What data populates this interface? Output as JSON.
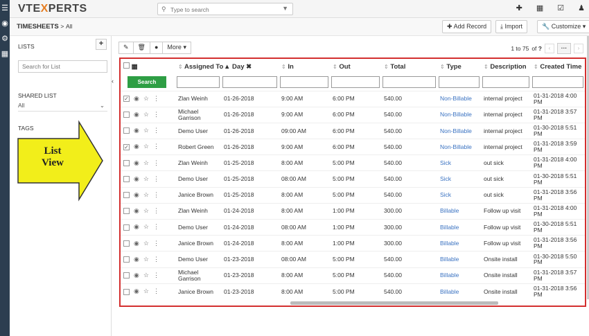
{
  "app": {
    "logo_prefix": "VTE",
    "logo_x": "X",
    "logo_suffix": "PERTS"
  },
  "search": {
    "placeholder": "Type to search"
  },
  "breadcrumb": {
    "module": "TIMESHEETS",
    "separator": ">",
    "current": "All"
  },
  "header_buttons": {
    "add_record": "Add Record",
    "import": "Import",
    "customize": "Customize"
  },
  "sidebar": {
    "lists_title": "LISTS",
    "add_label": "+",
    "search_placeholder": "Search for List",
    "shared_title": "SHARED LIST",
    "shared_value": "All",
    "tags_title": "TAGS"
  },
  "callout": {
    "line1": "List",
    "line2": "View",
    "color": "#f2ee1a"
  },
  "toolbar": {
    "more_label": "More"
  },
  "pager": {
    "range": "1 to 75",
    "of": "of",
    "total": "?",
    "dots": "···"
  },
  "table": {
    "columns": [
      "Assigned To",
      "Day",
      "In",
      "Out",
      "Total",
      "Type",
      "Description",
      "Created Time"
    ],
    "search_button": "Search",
    "rows": [
      {
        "checked": true,
        "assigned": "Zlan Weinh",
        "day": "01-26-2018",
        "in": "9:00 AM",
        "out": "6:00 PM",
        "total": "540.00",
        "type": "Non-Billable",
        "desc": "internal project",
        "created": "01-31-2018 4:00 PM"
      },
      {
        "checked": false,
        "assigned": "Michael Garrison",
        "day": "01-26-2018",
        "in": "9:00 AM",
        "out": "6:00 PM",
        "total": "540.00",
        "type": "Non-Billable",
        "desc": "internal project",
        "created": "01-31-2018 3:57 PM"
      },
      {
        "checked": false,
        "assigned": "Demo User",
        "day": "01-26-2018",
        "in": "09:00 AM",
        "out": "6:00 PM",
        "total": "540.00",
        "type": "Non-Billable",
        "desc": "internal project",
        "created": "01-30-2018 5:51 PM"
      },
      {
        "checked": true,
        "assigned": "Robert Green",
        "day": "01-26-2018",
        "in": "9:00 AM",
        "out": "6:00 PM",
        "total": "540.00",
        "type": "Non-Billable",
        "desc": "internal project",
        "created": "01-31-2018 3:59 PM"
      },
      {
        "checked": false,
        "assigned": "Zlan Weinh",
        "day": "01-25-2018",
        "in": "8:00 AM",
        "out": "5:00 PM",
        "total": "540.00",
        "type": "Sick",
        "desc": "out sick",
        "created": "01-31-2018 4:00 PM"
      },
      {
        "checked": false,
        "assigned": "Demo User",
        "day": "01-25-2018",
        "in": "08:00 AM",
        "out": "5:00 PM",
        "total": "540.00",
        "type": "Sick",
        "desc": "out sick",
        "created": "01-30-2018 5:51 PM"
      },
      {
        "checked": false,
        "assigned": "Janice Brown",
        "day": "01-25-2018",
        "in": "8:00 AM",
        "out": "5:00 PM",
        "total": "540.00",
        "type": "Sick",
        "desc": "out sick",
        "created": "01-31-2018 3:56 PM"
      },
      {
        "checked": false,
        "assigned": "Zlan Weinh",
        "day": "01-24-2018",
        "in": "8:00 AM",
        "out": "1:00 PM",
        "total": "300.00",
        "type": "Billable",
        "desc": "Follow up visit",
        "created": "01-31-2018 4:00 PM"
      },
      {
        "checked": false,
        "assigned": "Demo User",
        "day": "01-24-2018",
        "in": "08:00 AM",
        "out": "1:00 PM",
        "total": "300.00",
        "type": "Billable",
        "desc": "Follow up visit",
        "created": "01-30-2018 5:51 PM"
      },
      {
        "checked": false,
        "assigned": "Janice Brown",
        "day": "01-24-2018",
        "in": "8:00 AM",
        "out": "1:00 PM",
        "total": "300.00",
        "type": "Billable",
        "desc": "Follow up visit",
        "created": "01-31-2018 3:56 PM"
      },
      {
        "checked": false,
        "assigned": "Demo User",
        "day": "01-23-2018",
        "in": "08:00 AM",
        "out": "5:00 PM",
        "total": "540.00",
        "type": "Billable",
        "desc": "Onsite install",
        "created": "01-30-2018 5:50 PM"
      },
      {
        "checked": false,
        "assigned": "Michael Garrison",
        "day": "01-23-2018",
        "in": "8:00 AM",
        "out": "5:00 PM",
        "total": "540.00",
        "type": "Billable",
        "desc": "Onsite install",
        "created": "01-31-2018 3:57 PM"
      },
      {
        "checked": false,
        "assigned": "Janice Brown",
        "day": "01-23-2018",
        "in": "8:00 AM",
        "out": "5:00 PM",
        "total": "540.00",
        "type": "Billable",
        "desc": "Onsite install",
        "created": "01-31-2018 3:56 PM"
      }
    ]
  },
  "colors": {
    "accent_green": "#2e9e44",
    "link_blue": "#3b73c2",
    "highlight_red": "#d32f2f",
    "sidebar_dark": "#2c3e50"
  }
}
